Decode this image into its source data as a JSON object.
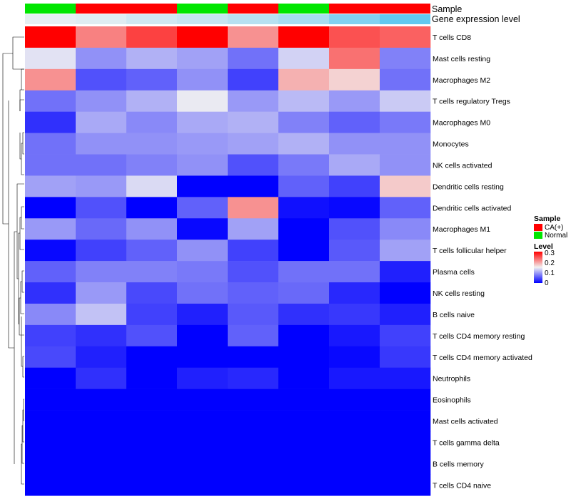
{
  "chart_data": {
    "type": "heatmap",
    "annotation_labels": {
      "sample": "Sample",
      "gene": "Gene expression level"
    },
    "columns": [
      {
        "sample": "Normal",
        "gene_level": 0.08
      },
      {
        "sample": "CA(+)",
        "gene_level": 0.12
      },
      {
        "sample": "CA(+)",
        "gene_level": 0.22
      },
      {
        "sample": "Normal",
        "gene_level": 0.28
      },
      {
        "sample": "CA(+)",
        "gene_level": 0.38
      },
      {
        "sample": "Normal",
        "gene_level": 0.48
      },
      {
        "sample": "CA(+)",
        "gene_level": 0.72
      },
      {
        "sample": "CA(+)",
        "gene_level": 0.92
      }
    ],
    "rows": [
      "T cells CD8",
      "Mast cells resting",
      "Macrophages M2",
      "T cells regulatory  Tregs",
      "Macrophages M0",
      "Monocytes",
      "NK cells activated",
      "Dendritic cells resting",
      "Dendritic cells activated",
      "Macrophages M1",
      "T cells follicular helper",
      "Plasma cells",
      "NK cells resting",
      "B cells naive",
      "T cells CD4 memory resting",
      "T cells CD4 memory activated",
      "Neutrophils",
      "Eosinophils",
      "Mast cells activated",
      "T cells gamma delta",
      "B cells memory",
      "T cells CD4 naive"
    ],
    "values": [
      [
        0.3,
        0.22,
        0.26,
        0.3,
        0.21,
        0.3,
        0.25,
        0.24
      ],
      [
        0.14,
        0.09,
        0.11,
        0.1,
        0.07,
        0.13,
        0.23,
        0.08
      ],
      [
        0.21,
        0.05,
        0.06,
        0.09,
        0.04,
        0.19,
        0.17,
        0.07
      ],
      [
        0.07,
        0.09,
        0.11,
        0.145,
        0.095,
        0.115,
        0.095,
        0.125
      ],
      [
        0.03,
        0.105,
        0.085,
        0.105,
        0.11,
        0.08,
        0.06,
        0.075
      ],
      [
        0.07,
        0.09,
        0.09,
        0.095,
        0.1,
        0.11,
        0.09,
        0.09
      ],
      [
        0.07,
        0.07,
        0.08,
        0.09,
        0.05,
        0.075,
        0.105,
        0.09
      ],
      [
        0.1,
        0.095,
        0.135,
        0.0,
        0.0,
        0.06,
        0.04,
        0.175
      ],
      [
        0.0,
        0.05,
        0.0,
        0.06,
        0.21,
        0.01,
        0.005,
        0.06
      ],
      [
        0.095,
        0.065,
        0.09,
        0.005,
        0.1,
        0.0,
        0.05,
        0.085
      ],
      [
        0.005,
        0.04,
        0.06,
        0.09,
        0.04,
        0.0,
        0.055,
        0.1
      ],
      [
        0.06,
        0.08,
        0.08,
        0.075,
        0.05,
        0.07,
        0.07,
        0.02
      ],
      [
        0.03,
        0.095,
        0.045,
        0.07,
        0.06,
        0.065,
        0.025,
        0.0
      ],
      [
        0.085,
        0.12,
        0.04,
        0.02,
        0.055,
        0.03,
        0.035,
        0.02
      ],
      [
        0.04,
        0.03,
        0.05,
        0.0,
        0.06,
        0.0,
        0.015,
        0.04
      ],
      [
        0.045,
        0.02,
        0.0,
        0.0,
        0.0,
        0.0,
        0.005,
        0.035
      ],
      [
        0.0,
        0.03,
        0.0,
        0.02,
        0.025,
        0.0,
        0.015,
        0.015
      ],
      [
        0.0,
        0.0,
        0.0,
        0.0,
        0.0,
        0.0,
        0.0,
        0.0
      ],
      [
        0.0,
        0.0,
        0.0,
        0.0,
        0.0,
        0.0,
        0.0,
        0.0
      ],
      [
        0.0,
        0.0,
        0.0,
        0.0,
        0.0,
        0.0,
        0.0,
        0.0
      ],
      [
        0.0,
        0.0,
        0.0,
        0.0,
        0.0,
        0.0,
        0.0,
        0.0
      ],
      [
        0.0,
        0.0,
        0.0,
        0.0,
        0.0,
        0.0,
        0.0,
        0.0
      ]
    ],
    "color_scale": {
      "min": 0,
      "mid": 0.15,
      "max": 0.3,
      "low": "#0000ff",
      "midcolor": "#f2f2f2",
      "high": "#ff0000"
    },
    "legend": {
      "sample_title": "Sample",
      "sample_items": [
        {
          "label": "CA(+)",
          "color": "#ff0000"
        },
        {
          "label": "Normal",
          "color": "#00e600"
        }
      ],
      "level_title": "Level",
      "level_ticks": [
        "0.3",
        "0.2",
        "0.1",
        "0"
      ],
      "position": "right"
    },
    "gene_level_colors": {
      "low": "#f2f2f2",
      "high": "#56c5f0"
    }
  }
}
